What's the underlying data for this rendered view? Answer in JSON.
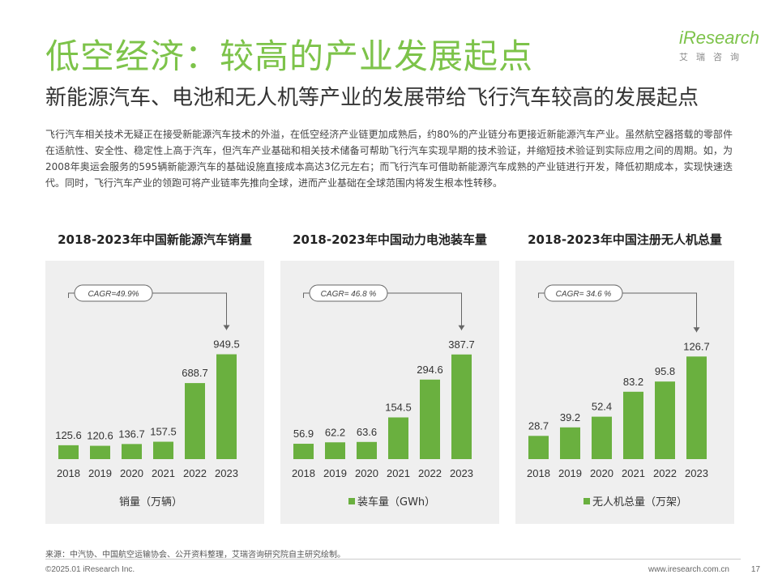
{
  "slide": {
    "title": "低空经济：较高的产业发展起点",
    "subtitle": "新能源汽车、电池和无人机等产业的发展带给飞行汽车较高的发展起点",
    "body": "飞行汽车相关技术无疑正在接受新能源汽车技术的外溢，在低空经济产业链更加成熟后，约80%的产业链分布更接近新能源汽车产业。虽然航空器搭载的零部件在适航性、安全性、稳定性上高于汽车，但汽车产业基础和相关技术储备可帮助飞行汽车实现早期的技术验证，并缩短技术验证到实际应用之间的周期。如，为2008年奥运会服务的595辆新能源汽车的基础设施直接成本高达3亿元左右；而飞行汽车可借助新能源汽车成熟的产业链进行开发，降低初期成本，实现快速迭代。同时，飞行汽车产业的领跑可将产业链率先推向全球，进而产业基础在全球范围内将发生根本性转移。"
  },
  "logo": {
    "mark": "iResearch",
    "sub": "艾瑞咨询"
  },
  "footer": {
    "source": "来源：中汽协、中国航空运输协会、公开资料整理，艾瑞咨询研究院自主研究绘制。",
    "copyright": "©2025.01 iResearch Inc.",
    "website": "www.iresearch.com.cn",
    "page": "17"
  },
  "colors": {
    "accent": "#7dc34a",
    "bar": "#6ab03f",
    "panel": "#efefef"
  },
  "chart_data": [
    {
      "type": "bar",
      "title": "2018-2023年中国新能源汽车销量",
      "categories": [
        "2018",
        "2019",
        "2020",
        "2021",
        "2022",
        "2023"
      ],
      "series": [
        {
          "name": "销量（万辆）",
          "values": [
            125.6,
            120.6,
            136.7,
            157.5,
            688.7,
            949.5
          ]
        }
      ],
      "value_labels": [
        "125.6",
        "120.6",
        "136.7",
        "157.5",
        "688.7",
        "949.5"
      ],
      "annotation": "CAGR=49.9%",
      "legend_label": "销量（万辆）",
      "legend_marker": false,
      "ylim": [
        0,
        1100
      ]
    },
    {
      "type": "bar",
      "title": "2018-2023年中国动力电池装车量",
      "categories": [
        "2018",
        "2019",
        "2020",
        "2021",
        "2022",
        "2023"
      ],
      "series": [
        {
          "name": "装车量（GWh）",
          "values": [
            56.9,
            62.2,
            63.6,
            154.5,
            294.6,
            387.7
          ]
        }
      ],
      "value_labels": [
        "56.9",
        "62.2",
        "63.6",
        "154.5",
        "294.6",
        "387.7"
      ],
      "annotation": "CAGR= 46.8 %",
      "legend_label": "装车量（GWh）",
      "legend_marker": true,
      "ylim": [
        0,
        450
      ]
    },
    {
      "type": "bar",
      "title": "2018-2023年中国注册无人机总量",
      "categories": [
        "2018",
        "2019",
        "2020",
        "2021",
        "2022",
        "2023"
      ],
      "series": [
        {
          "name": "无人机总量（万架）",
          "values": [
            28.7,
            39.2,
            52.4,
            83.2,
            95.8,
            126.7
          ]
        }
      ],
      "value_labels": [
        "28.7",
        "39.2",
        "52.4",
        "83.2",
        "95.8",
        "126.7"
      ],
      "annotation": "CAGR= 34.6 %",
      "legend_label": "无人机总量（万架）",
      "legend_marker": true,
      "ylim": [
        0,
        150
      ]
    }
  ]
}
